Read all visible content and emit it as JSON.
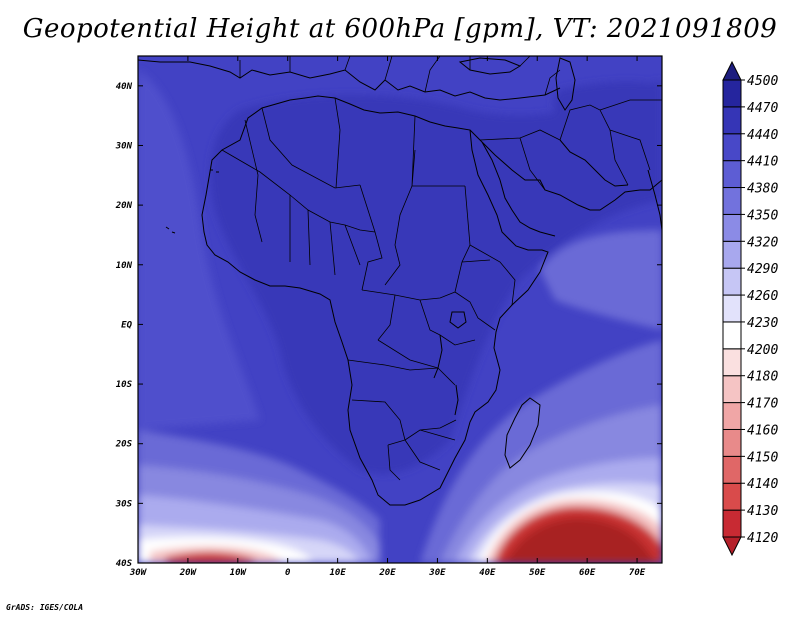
{
  "title": "Geopotential Height at 600hPa [gpm], VT: 2021091809",
  "credit": "GrADS: IGES/COLA",
  "map": {
    "lon_range": [
      -30,
      75
    ],
    "lat_range": [
      -40,
      45
    ],
    "lon_ticks": [
      {
        "v": -30,
        "label": "30W"
      },
      {
        "v": -20,
        "label": "20W"
      },
      {
        "v": -10,
        "label": "10W"
      },
      {
        "v": 0,
        "label": "0"
      },
      {
        "v": 10,
        "label": "10E"
      },
      {
        "v": 20,
        "label": "20E"
      },
      {
        "v": 30,
        "label": "30E"
      },
      {
        "v": 40,
        "label": "40E"
      },
      {
        "v": 50,
        "label": "50E"
      },
      {
        "v": 60,
        "label": "60E"
      },
      {
        "v": 70,
        "label": "70E"
      }
    ],
    "lat_ticks": [
      {
        "v": 40,
        "label": "40N"
      },
      {
        "v": 30,
        "label": "30N"
      },
      {
        "v": 20,
        "label": "20N"
      },
      {
        "v": 10,
        "label": "10N"
      },
      {
        "v": 0,
        "label": "EQ"
      },
      {
        "v": -10,
        "label": "10S"
      },
      {
        "v": -20,
        "label": "20S"
      },
      {
        "v": -30,
        "label": "30S"
      },
      {
        "v": -40,
        "label": "40S"
      }
    ]
  },
  "colorbar": {
    "levels": [
      4120,
      4130,
      4140,
      4150,
      4160,
      4170,
      4180,
      4200,
      4230,
      4260,
      4290,
      4320,
      4350,
      4380,
      4410,
      4440,
      4470,
      4500
    ],
    "colors": [
      "#b5202a",
      "#c82a33",
      "#d94b4b",
      "#e06767",
      "#e88a8a",
      "#f0a6a6",
      "#f5c4c4",
      "#fae0e0",
      "#ffffff",
      "#e2e2fb",
      "#c6c6f5",
      "#a8a8ee",
      "#8b8be6",
      "#7272dd",
      "#5d5dd4",
      "#4848c8",
      "#3535b6",
      "#25259e",
      "#1d1d7e"
    ]
  },
  "field_colors": {
    "darkest": "#3838b8",
    "dark": "#4242c4",
    "medium": "#5050cc",
    "light": "#6a6ad6",
    "lighter": "#8888e0",
    "lightest": "#ababee",
    "pale": "#d6d6f8",
    "white": "#ffffff",
    "pink": "#f4c2c2",
    "red_light": "#e07272",
    "red": "#c83232",
    "red_dark": "#a82020"
  }
}
